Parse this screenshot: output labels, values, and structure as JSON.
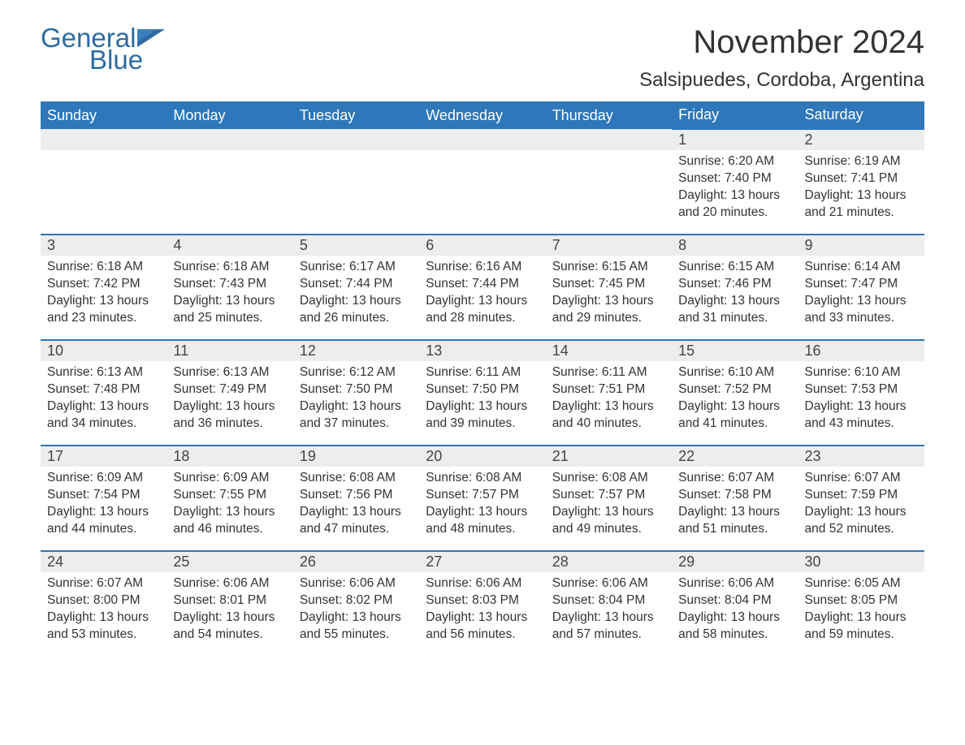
{
  "logo": {
    "text_general": "General",
    "text_blue": "Blue",
    "brand_color": "#2d6ca2"
  },
  "header": {
    "month_title": "November 2024",
    "location": "Salsipuedes, Cordoba, Argentina"
  },
  "colors": {
    "header_bg": "#2d77ba",
    "header_text": "#ffffff",
    "daynum_bg": "#ededed",
    "body_text": "#333333",
    "rule": "#2d77ba",
    "page_bg": "#ffffff"
  },
  "typography": {
    "month_title_fontsize": 40,
    "location_fontsize": 24,
    "weekday_fontsize": 18,
    "daynum_fontsize": 18,
    "body_fontsize": 15.5,
    "font_family": "Arial"
  },
  "calendar": {
    "type": "table",
    "weekdays": [
      "Sunday",
      "Monday",
      "Tuesday",
      "Wednesday",
      "Thursday",
      "Friday",
      "Saturday"
    ],
    "first_weekday_index": 5,
    "days_in_month": 30,
    "days": [
      {
        "n": 1,
        "sunrise": "6:20 AM",
        "sunset": "7:40 PM",
        "daylight": "13 hours and 20 minutes."
      },
      {
        "n": 2,
        "sunrise": "6:19 AM",
        "sunset": "7:41 PM",
        "daylight": "13 hours and 21 minutes."
      },
      {
        "n": 3,
        "sunrise": "6:18 AM",
        "sunset": "7:42 PM",
        "daylight": "13 hours and 23 minutes."
      },
      {
        "n": 4,
        "sunrise": "6:18 AM",
        "sunset": "7:43 PM",
        "daylight": "13 hours and 25 minutes."
      },
      {
        "n": 5,
        "sunrise": "6:17 AM",
        "sunset": "7:44 PM",
        "daylight": "13 hours and 26 minutes."
      },
      {
        "n": 6,
        "sunrise": "6:16 AM",
        "sunset": "7:44 PM",
        "daylight": "13 hours and 28 minutes."
      },
      {
        "n": 7,
        "sunrise": "6:15 AM",
        "sunset": "7:45 PM",
        "daylight": "13 hours and 29 minutes."
      },
      {
        "n": 8,
        "sunrise": "6:15 AM",
        "sunset": "7:46 PM",
        "daylight": "13 hours and 31 minutes."
      },
      {
        "n": 9,
        "sunrise": "6:14 AM",
        "sunset": "7:47 PM",
        "daylight": "13 hours and 33 minutes."
      },
      {
        "n": 10,
        "sunrise": "6:13 AM",
        "sunset": "7:48 PM",
        "daylight": "13 hours and 34 minutes."
      },
      {
        "n": 11,
        "sunrise": "6:13 AM",
        "sunset": "7:49 PM",
        "daylight": "13 hours and 36 minutes."
      },
      {
        "n": 12,
        "sunrise": "6:12 AM",
        "sunset": "7:50 PM",
        "daylight": "13 hours and 37 minutes."
      },
      {
        "n": 13,
        "sunrise": "6:11 AM",
        "sunset": "7:50 PM",
        "daylight": "13 hours and 39 minutes."
      },
      {
        "n": 14,
        "sunrise": "6:11 AM",
        "sunset": "7:51 PM",
        "daylight": "13 hours and 40 minutes."
      },
      {
        "n": 15,
        "sunrise": "6:10 AM",
        "sunset": "7:52 PM",
        "daylight": "13 hours and 41 minutes."
      },
      {
        "n": 16,
        "sunrise": "6:10 AM",
        "sunset": "7:53 PM",
        "daylight": "13 hours and 43 minutes."
      },
      {
        "n": 17,
        "sunrise": "6:09 AM",
        "sunset": "7:54 PM",
        "daylight": "13 hours and 44 minutes."
      },
      {
        "n": 18,
        "sunrise": "6:09 AM",
        "sunset": "7:55 PM",
        "daylight": "13 hours and 46 minutes."
      },
      {
        "n": 19,
        "sunrise": "6:08 AM",
        "sunset": "7:56 PM",
        "daylight": "13 hours and 47 minutes."
      },
      {
        "n": 20,
        "sunrise": "6:08 AM",
        "sunset": "7:57 PM",
        "daylight": "13 hours and 48 minutes."
      },
      {
        "n": 21,
        "sunrise": "6:08 AM",
        "sunset": "7:57 PM",
        "daylight": "13 hours and 49 minutes."
      },
      {
        "n": 22,
        "sunrise": "6:07 AM",
        "sunset": "7:58 PM",
        "daylight": "13 hours and 51 minutes."
      },
      {
        "n": 23,
        "sunrise": "6:07 AM",
        "sunset": "7:59 PM",
        "daylight": "13 hours and 52 minutes."
      },
      {
        "n": 24,
        "sunrise": "6:07 AM",
        "sunset": "8:00 PM",
        "daylight": "13 hours and 53 minutes."
      },
      {
        "n": 25,
        "sunrise": "6:06 AM",
        "sunset": "8:01 PM",
        "daylight": "13 hours and 54 minutes."
      },
      {
        "n": 26,
        "sunrise": "6:06 AM",
        "sunset": "8:02 PM",
        "daylight": "13 hours and 55 minutes."
      },
      {
        "n": 27,
        "sunrise": "6:06 AM",
        "sunset": "8:03 PM",
        "daylight": "13 hours and 56 minutes."
      },
      {
        "n": 28,
        "sunrise": "6:06 AM",
        "sunset": "8:04 PM",
        "daylight": "13 hours and 57 minutes."
      },
      {
        "n": 29,
        "sunrise": "6:06 AM",
        "sunset": "8:04 PM",
        "daylight": "13 hours and 58 minutes."
      },
      {
        "n": 30,
        "sunrise": "6:05 AM",
        "sunset": "8:05 PM",
        "daylight": "13 hours and 59 minutes."
      }
    ],
    "labels": {
      "sunrise_prefix": "Sunrise: ",
      "sunset_prefix": "Sunset: ",
      "daylight_prefix": "Daylight: "
    }
  }
}
